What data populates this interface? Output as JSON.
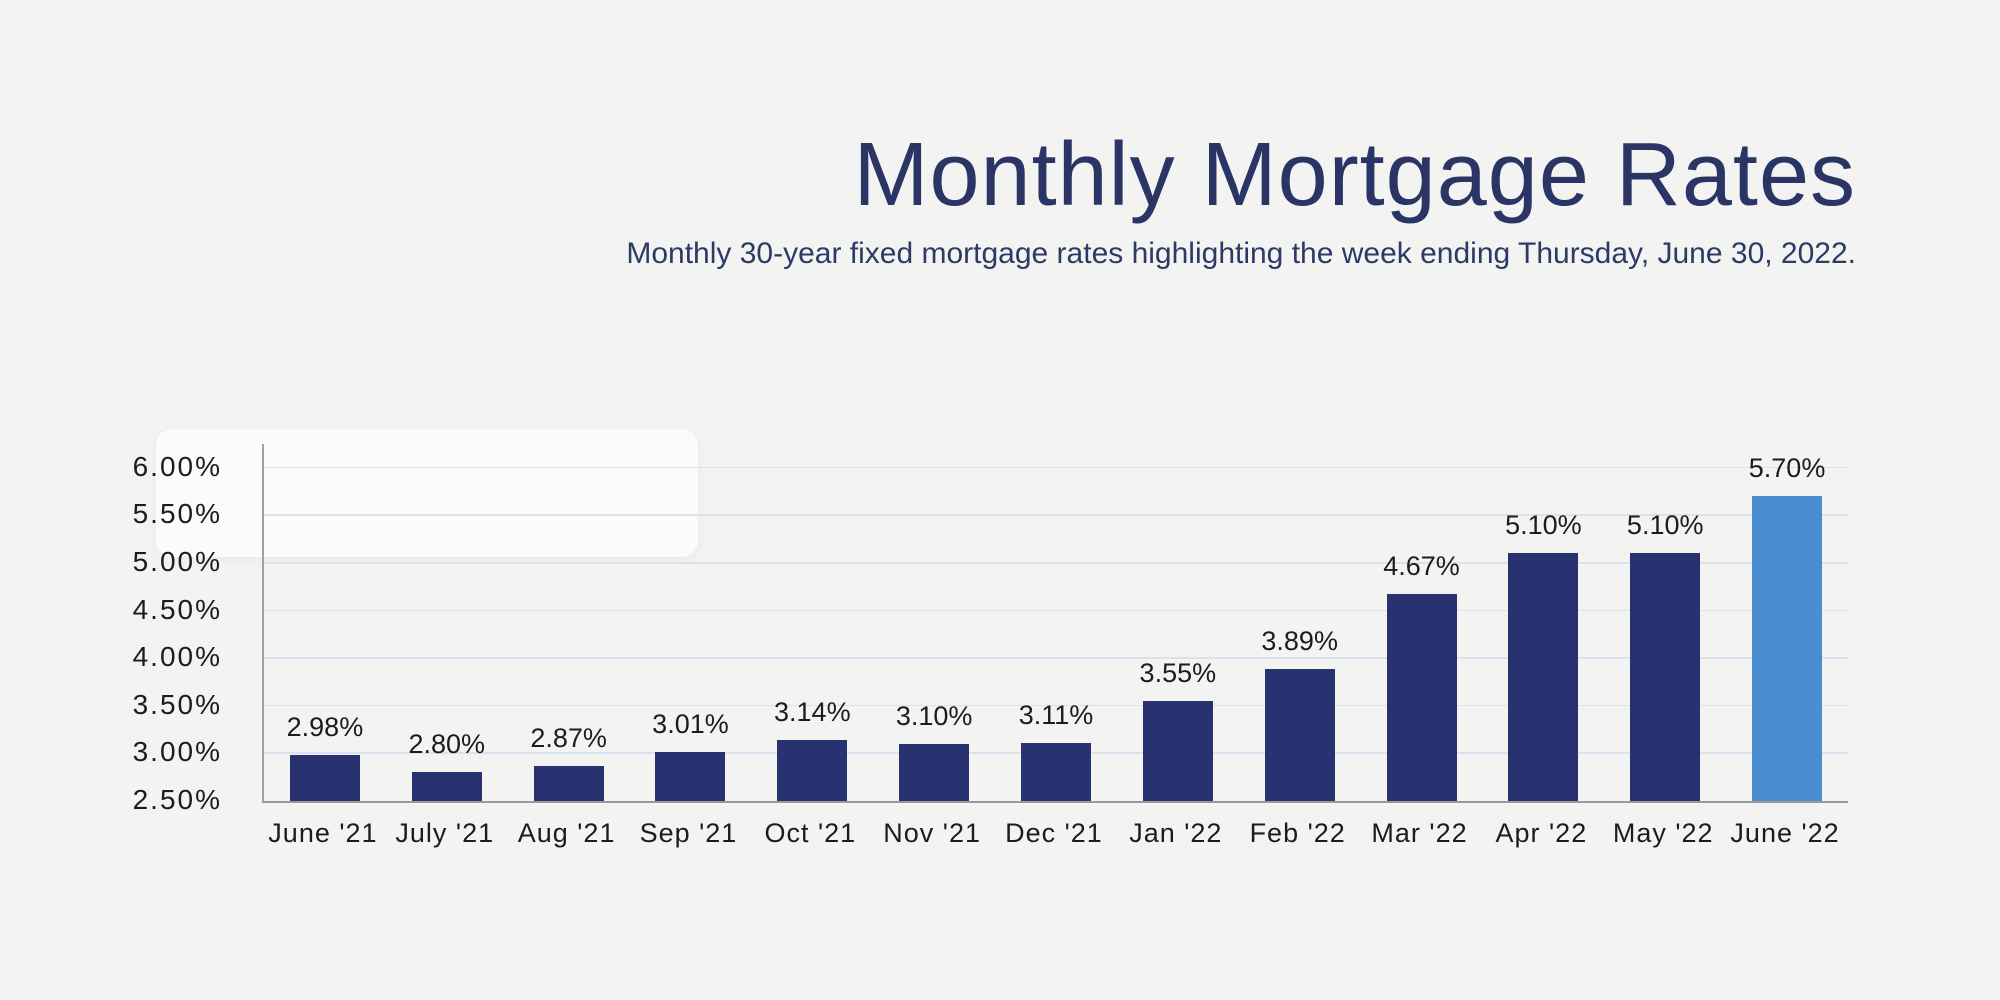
{
  "page": {
    "background": "#f3f3f2"
  },
  "header": {
    "title": "Monthly Mortgage Rates",
    "subtitle": "Monthly 30-year fixed mortgage rates highlighting the week ending Thursday, June 30, 2022."
  },
  "chart_data": {
    "type": "bar",
    "title": "Monthly Mortgage Rates",
    "subtitle": "Monthly 30-year fixed mortgage rates highlighting the week ending Thursday, June 30, 2022.",
    "categories": [
      "June '21",
      "July '21",
      "Aug '21",
      "Sep '21",
      "Oct '21",
      "Nov '21",
      "Dec '21",
      "Jan '22",
      "Feb '22",
      "Mar '22",
      "Apr '22",
      "May '22",
      "June '22"
    ],
    "values": [
      2.98,
      2.8,
      2.87,
      3.01,
      3.14,
      3.1,
      3.11,
      3.55,
      3.89,
      4.67,
      5.1,
      5.1,
      5.7
    ],
    "labels": [
      "2.98%",
      "2.80%",
      "2.87%",
      "3.01%",
      "3.14%",
      "3.10%",
      "3.11%",
      "3.55%",
      "3.89%",
      "4.67%",
      "5.10%",
      "5.10%",
      "5.70%"
    ],
    "highlight_index": 12,
    "xlabel": "",
    "ylabel": "",
    "ylim": [
      2.5,
      6.25
    ],
    "yticks": [
      {
        "value": 6.0,
        "label": "6.00%"
      },
      {
        "value": 5.5,
        "label": "5.50%"
      },
      {
        "value": 5.0,
        "label": "5.00%"
      },
      {
        "value": 4.5,
        "label": "4.50%"
      },
      {
        "value": 4.0,
        "label": "4.00%"
      },
      {
        "value": 3.5,
        "label": "3.50%"
      },
      {
        "value": 3.0,
        "label": "3.00%"
      },
      {
        "value": 2.5,
        "label": "2.50%"
      }
    ],
    "grid": "horizontal",
    "legend": "none",
    "colors": {
      "bar": "#293271",
      "highlight": "#4a8ed1",
      "gridline": "#dbe1ee",
      "axis": "#9b9a97",
      "text": "#1c1c1c",
      "title": "#2a3566"
    }
  }
}
